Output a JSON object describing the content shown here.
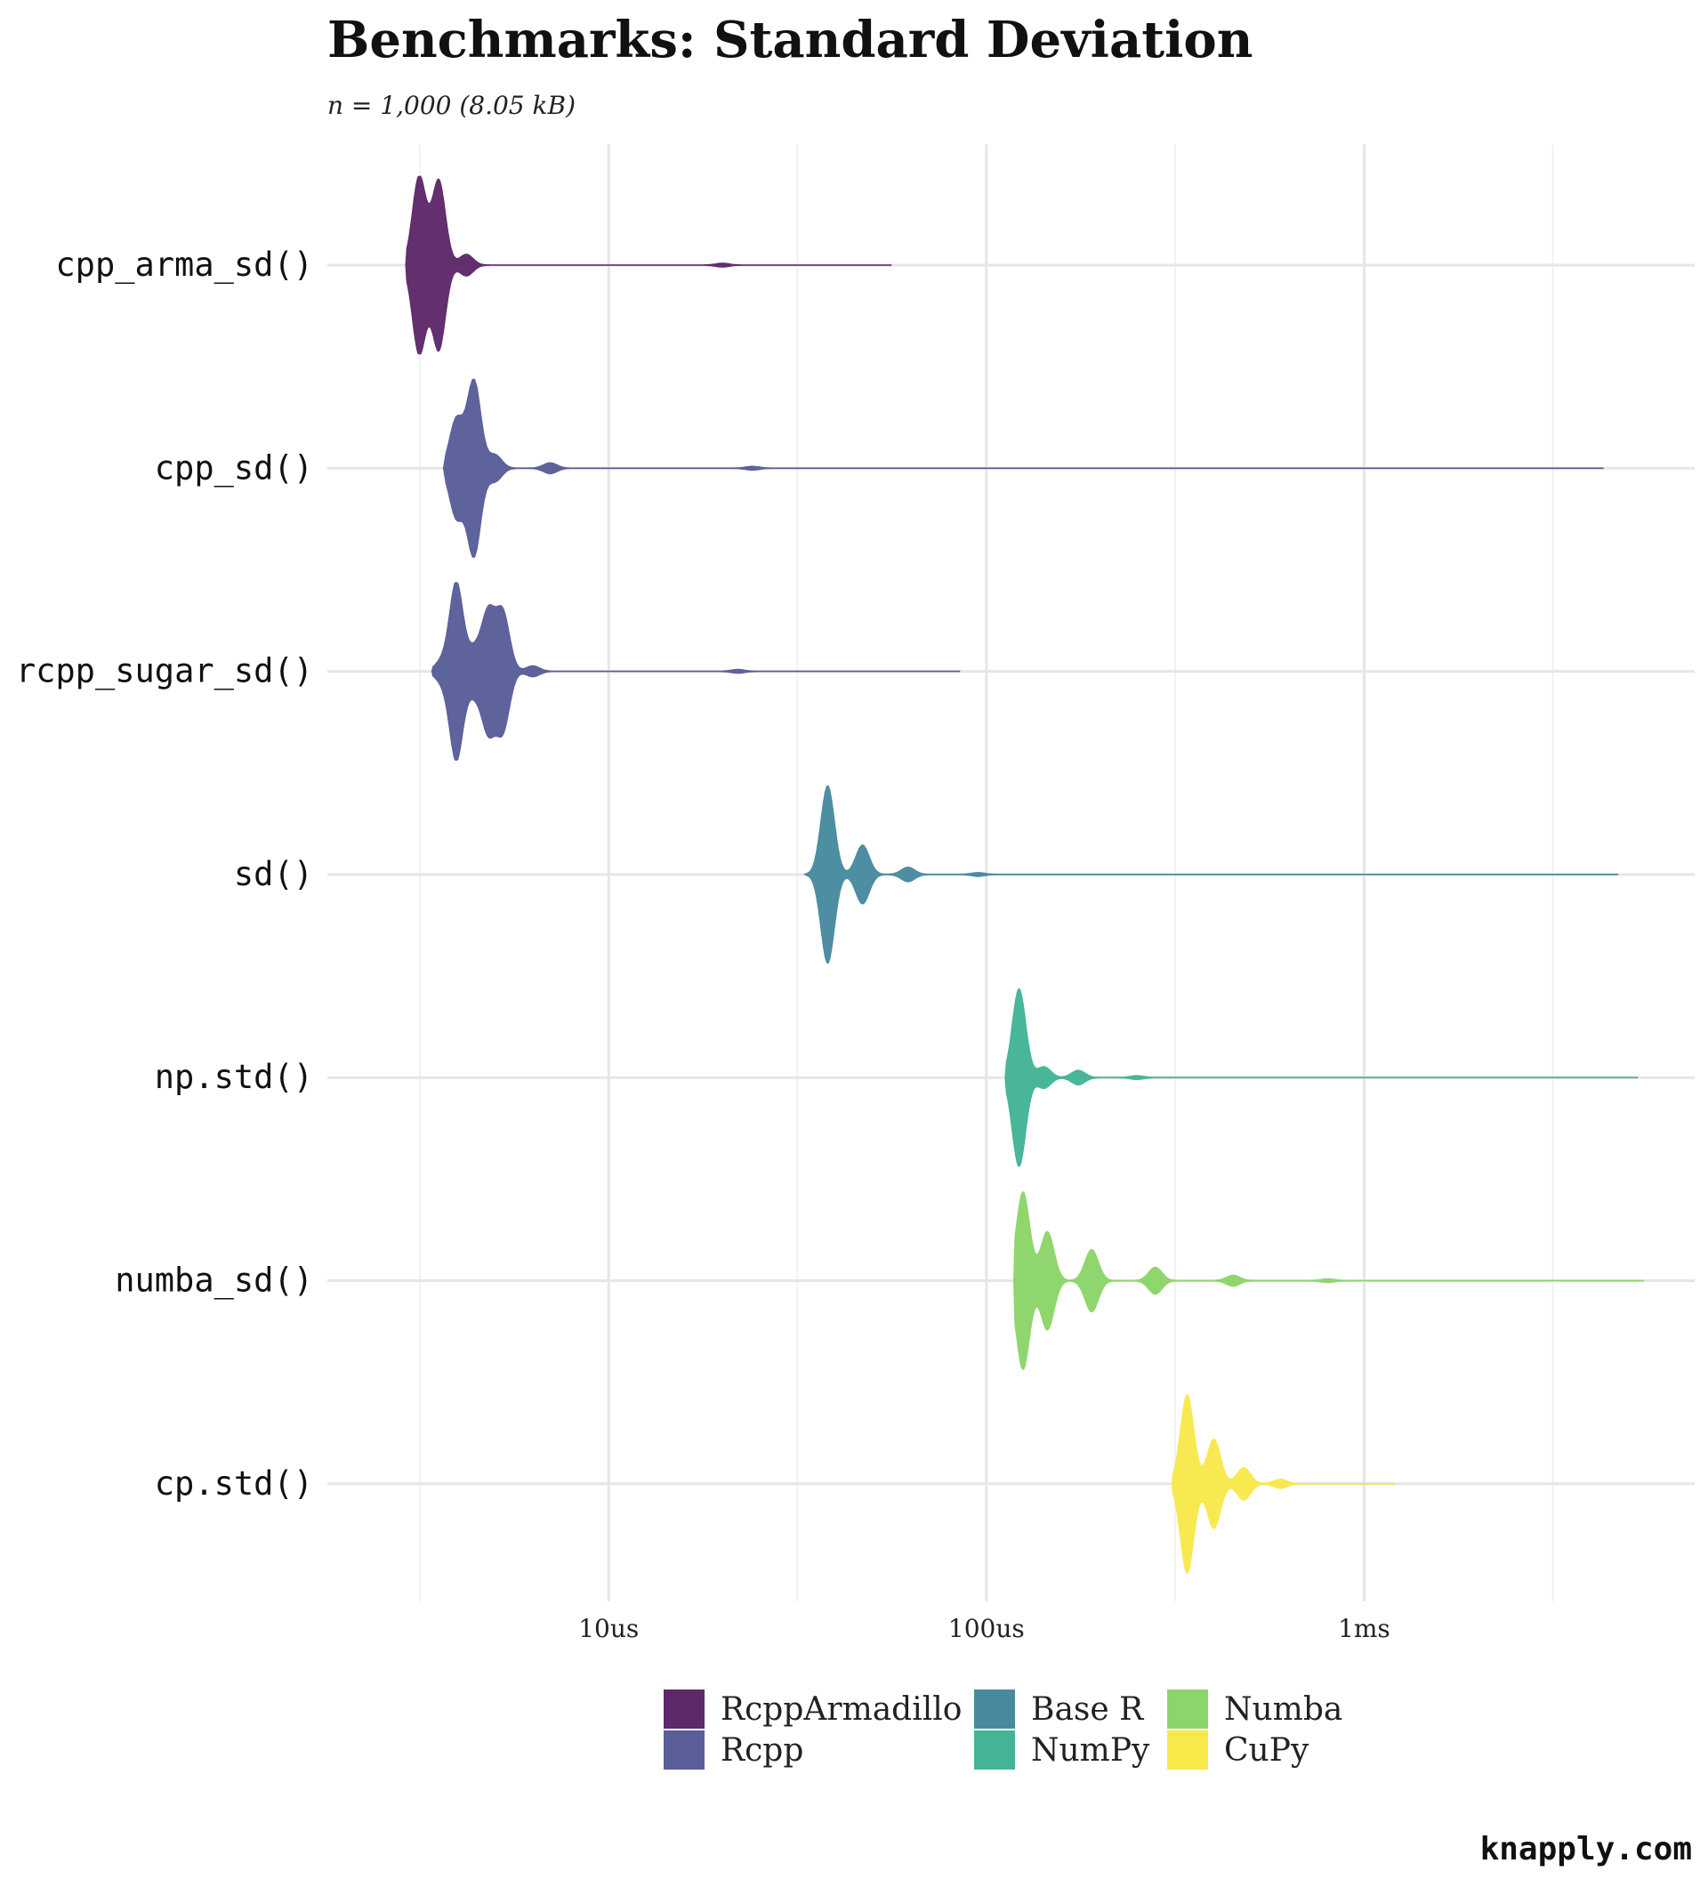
{
  "chart_data": {
    "type": "violin",
    "title": "Benchmarks: Standard Deviation",
    "subtitle": "n = 1,000 (8.05 kB)",
    "xlabel": "",
    "ylabel": "",
    "x_scale": "log10",
    "x_unit": "seconds",
    "xlim": [
      1.8e-06,
      0.0075
    ],
    "x_ticks": [
      {
        "value": 1e-05,
        "label": "10us"
      },
      {
        "value": 0.0001,
        "label": "100us"
      },
      {
        "value": 0.001,
        "label": "1ms"
      }
    ],
    "x_minor_ticks": [
      3.16e-06,
      3.16e-05,
      0.000316,
      0.00316
    ],
    "categories": [
      "cpp_arma_sd()",
      "cpp_sd()",
      "rcpp_sugar_sd()",
      "sd()",
      "np.std()",
      "numba_sd()",
      "cp.std()"
    ],
    "series": [
      {
        "name": "cpp_arma_sd()",
        "group": "RcppArmadillo",
        "min": 2.9e-06,
        "max": 5.6e-05,
        "modes": [
          [
            3.15e-06,
            1.0
          ],
          [
            3.55e-06,
            0.95
          ],
          [
            4.2e-06,
            0.12
          ],
          [
            2e-05,
            0.02
          ]
        ]
      },
      {
        "name": "cpp_sd()",
        "group": "Rcpp",
        "min": 3.65e-06,
        "max": 0.0043,
        "modes": [
          [
            3.95e-06,
            0.55
          ],
          [
            4.4e-06,
            1.0
          ],
          [
            5e-06,
            0.15
          ],
          [
            7e-06,
            0.06
          ],
          [
            2.4e-05,
            0.02
          ]
        ]
      },
      {
        "name": "rcpp_sugar_sd()",
        "group": "Rcpp",
        "min": 3.4e-06,
        "max": 8.5e-05,
        "modes": [
          [
            3.6e-06,
            0.1
          ],
          [
            3.95e-06,
            1.0
          ],
          [
            4.4e-06,
            0.22
          ],
          [
            4.8e-06,
            0.65
          ],
          [
            5.25e-06,
            0.65
          ],
          [
            6.3e-06,
            0.06
          ],
          [
            2.2e-05,
            0.02
          ]
        ]
      },
      {
        "name": "sd()",
        "group": "Base R",
        "min": 3.3e-05,
        "max": 0.0047,
        "modes": [
          [
            3.8e-05,
            1.0
          ],
          [
            4.7e-05,
            0.33
          ],
          [
            6.2e-05,
            0.08
          ],
          [
            9.5e-05,
            0.02
          ]
        ]
      },
      {
        "name": "np.std()",
        "group": "NumPy",
        "min": 0.000112,
        "max": 0.0053,
        "modes": [
          [
            0.000122,
            1.0
          ],
          [
            0.000142,
            0.12
          ],
          [
            0.000175,
            0.08
          ],
          [
            0.00025,
            0.02
          ]
        ]
      },
      {
        "name": "numba_sd()",
        "group": "Numba",
        "min": 0.000118,
        "max": 0.0055,
        "modes": [
          [
            0.000125,
            1.0
          ],
          [
            0.000145,
            0.55
          ],
          [
            0.00019,
            0.35
          ],
          [
            0.00028,
            0.15
          ],
          [
            0.00045,
            0.06
          ],
          [
            0.0008,
            0.02
          ]
        ]
      },
      {
        "name": "cp.std()",
        "group": "CuPy",
        "min": 0.00031,
        "max": 0.0012,
        "modes": [
          [
            0.00034,
            1.0
          ],
          [
            0.0004,
            0.5
          ],
          [
            0.00048,
            0.18
          ],
          [
            0.0006,
            0.05
          ]
        ]
      }
    ],
    "legend": {
      "position": "bottom",
      "items": [
        {
          "label": "RcppArmadillo",
          "color": "#5e2869"
        },
        {
          "label": "Rcpp",
          "color": "#5a5e99"
        },
        {
          "label": "Base R",
          "color": "#478a9f"
        },
        {
          "label": "NumPy",
          "color": "#43b496"
        },
        {
          "label": "Numba",
          "color": "#8cd56a"
        },
        {
          "label": "CuPy",
          "color": "#f8e84a"
        }
      ]
    },
    "grid": true
  },
  "caption": "knapply.com"
}
